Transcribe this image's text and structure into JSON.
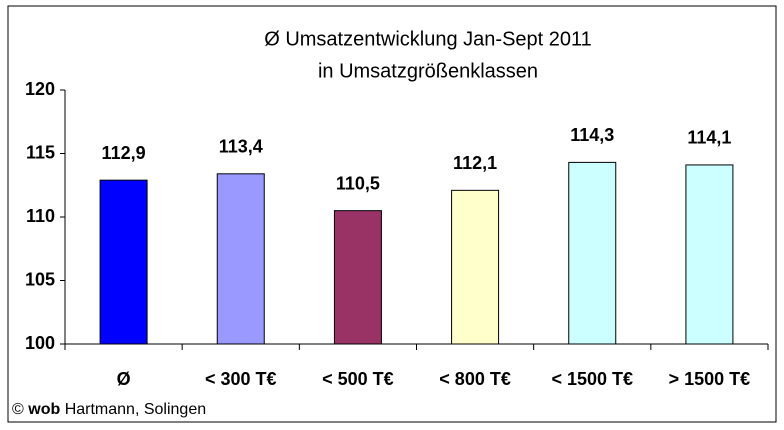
{
  "chart_data": {
    "type": "bar",
    "title": [
      "Ø Umsatzentwicklung Jan-Sept 2011",
      "in Umsatzgrößenklassen"
    ],
    "categories": [
      "Ø",
      "< 300 T€",
      "< 500 T€",
      "< 800 T€",
      "< 1500 T€",
      "> 1500 T€"
    ],
    "values": [
      112.9,
      113.4,
      110.5,
      112.1,
      114.3,
      114.1
    ],
    "value_labels": [
      "112,9",
      "113,4",
      "110,5",
      "112,1",
      "114,3",
      "114,1"
    ],
    "colors": [
      "#0000ff",
      "#9999ff",
      "#993366",
      "#ffffcc",
      "#ccffff",
      "#ccffff"
    ],
    "ylim": [
      100,
      120
    ],
    "yticks": [
      100,
      105,
      110,
      115,
      120
    ],
    "grid": false,
    "footer": {
      "symbol": "©",
      "brand": "wob",
      "text": "Hartmann, Solingen"
    }
  }
}
